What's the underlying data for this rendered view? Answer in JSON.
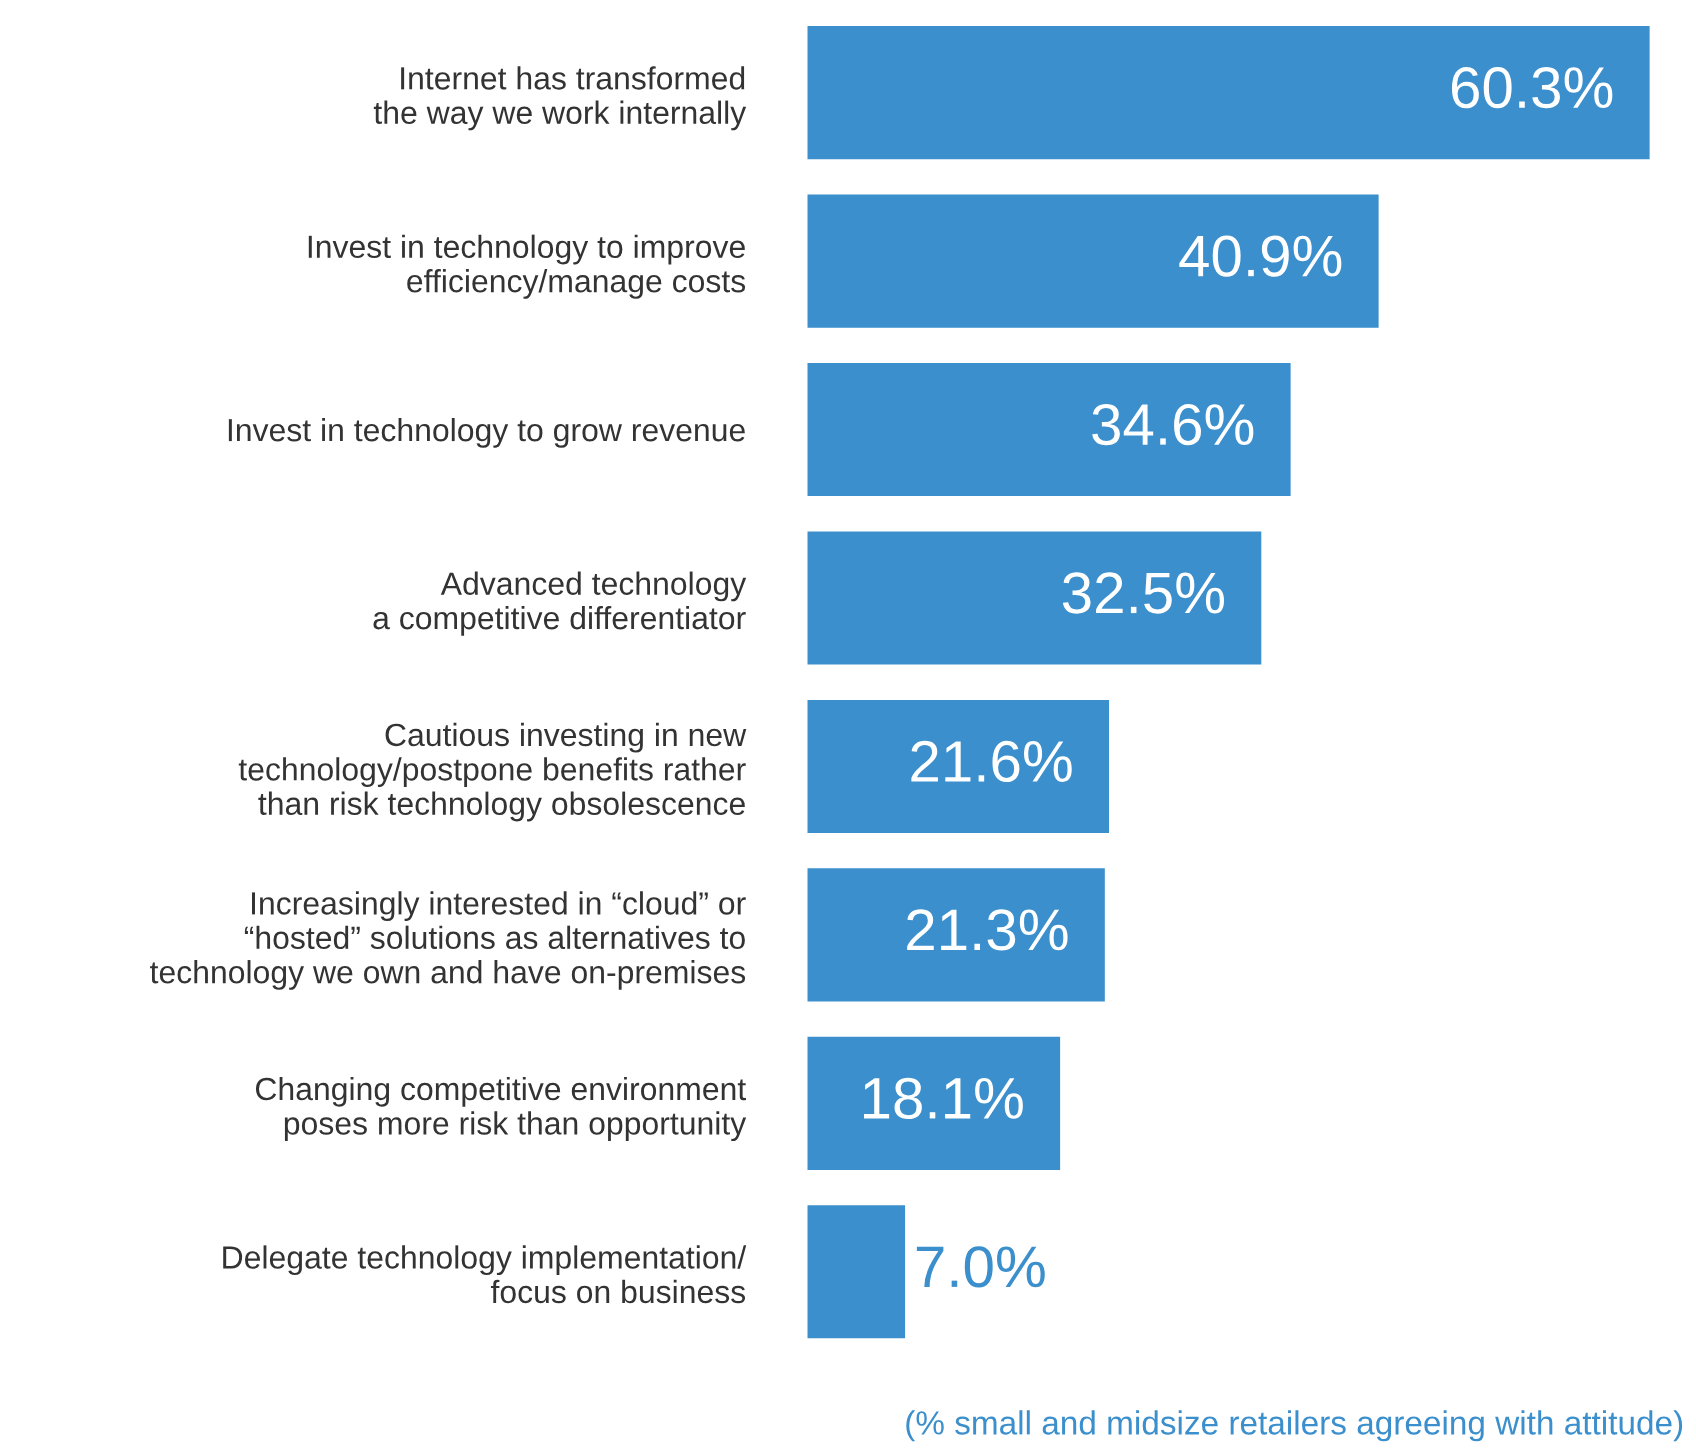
{
  "chart_data": {
    "type": "bar",
    "orientation": "horizontal",
    "categories": [
      "Internet has transformed\nthe way we work internally",
      "Invest in technology to improve\nefficiency/manage costs",
      "Invest in technology to grow revenue",
      "Advanced technology\na competitive differentiator",
      "Cautious investing in new\ntechnology/postpone benefits rather\nthan risk technology obsolescence",
      "Increasingly interested in “cloud” or\n“hosted” solutions as alternatives to\ntechnology we own and have on-premises",
      "Changing competitive environment\nposes more risk than opportunity",
      "Delegate technology implementation/\nfocus on business"
    ],
    "values": [
      60.3,
      40.9,
      34.6,
      32.5,
      21.6,
      21.3,
      18.1,
      7.0
    ],
    "value_labels": [
      "60.3%",
      "40.9%",
      "34.6%",
      "32.5%",
      "21.6%",
      "21.3%",
      "18.1%",
      "7.0%"
    ],
    "color": "#3b8fcc",
    "grid": false,
    "legend": false,
    "annotations": [
      "(% small and midsize retailers agreeing with attitude)"
    ]
  }
}
